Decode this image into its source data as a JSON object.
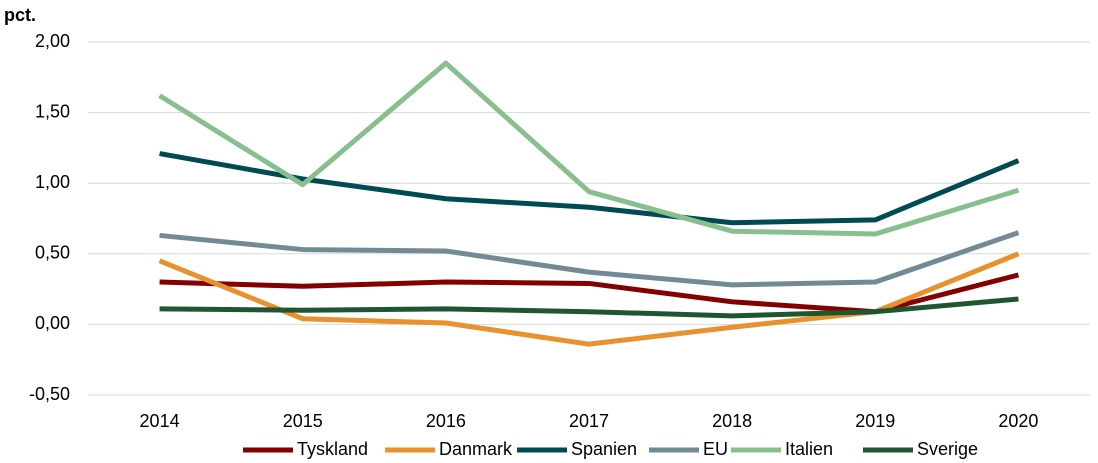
{
  "chart_data": {
    "type": "line",
    "y_label": "pct.",
    "categories": [
      "2014",
      "2015",
      "2016",
      "2017",
      "2018",
      "2019",
      "2020"
    ],
    "series": [
      {
        "name": "Tyskland",
        "color": "#840000",
        "values": [
          0.3,
          0.27,
          0.3,
          0.29,
          0.16,
          0.09,
          0.35
        ]
      },
      {
        "name": "Danmark",
        "color": "#e8912d",
        "values": [
          0.45,
          0.04,
          0.01,
          -0.14,
          -0.02,
          0.09,
          0.5
        ]
      },
      {
        "name": "Spanien",
        "color": "#004b53",
        "values": [
          1.21,
          1.03,
          0.89,
          0.83,
          0.72,
          0.74,
          1.16
        ]
      },
      {
        "name": "EU",
        "color": "#738a96",
        "values": [
          0.63,
          0.53,
          0.52,
          0.37,
          0.28,
          0.3,
          0.65
        ]
      },
      {
        "name": "Italien",
        "color": "#88bf8e",
        "values": [
          1.62,
          0.99,
          1.85,
          0.94,
          0.66,
          0.64,
          0.95
        ]
      },
      {
        "name": "Sverige",
        "color": "#1e5631",
        "values": [
          0.11,
          0.1,
          0.11,
          0.09,
          0.06,
          0.09,
          0.18
        ]
      }
    ],
    "ylim": [
      -0.5,
      2.0
    ],
    "yticks": [
      {
        "value": -0.5,
        "label": "-0,50"
      },
      {
        "value": 0,
        "label": "0,00"
      },
      {
        "value": 0.5,
        "label": "0,50"
      },
      {
        "value": 1.0,
        "label": "1,00"
      },
      {
        "value": 1.5,
        "label": "1,50"
      },
      {
        "value": 2.0,
        "label": "2,00"
      }
    ],
    "grid": true,
    "legend": "bottom"
  }
}
